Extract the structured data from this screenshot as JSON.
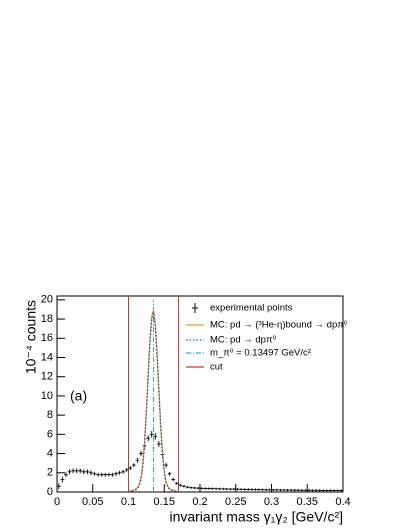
{
  "chart_data": {
    "type": "line",
    "xlabel": "invariant mass γ₁γ₂ [GeV/c²]",
    "ylabel": "10⁻⁴ counts",
    "annotation": "(a)",
    "xlim": [
      0,
      0.4
    ],
    "xticks": [
      0,
      0.05,
      0.1,
      0.15,
      0.2,
      0.25,
      0.3,
      0.35,
      0.4
    ],
    "ylim": [
      0,
      20.4
    ],
    "yticks": [
      0,
      2,
      4,
      6,
      8,
      10,
      12,
      14,
      16,
      18,
      20
    ],
    "grid": false,
    "legend": "upper right",
    "series": [
      {
        "name": "experimental points",
        "color": "#000000",
        "style": "points",
        "x": [
          0.0025,
          0.0075,
          0.0125,
          0.0175,
          0.0225,
          0.0275,
          0.0325,
          0.0375,
          0.0425,
          0.0475,
          0.0525,
          0.0575,
          0.0625,
          0.0675,
          0.0725,
          0.0775,
          0.0825,
          0.0875,
          0.0925,
          0.0975,
          0.1025,
          0.1075,
          0.1125,
          0.1175,
          0.1225,
          0.1275,
          0.1325,
          0.1375,
          0.1425,
          0.1475,
          0.1525,
          0.1575,
          0.1625,
          0.1675,
          0.1725,
          0.1775,
          0.1825,
          0.1875,
          0.1925,
          0.1975,
          0.2025,
          0.2075,
          0.2125,
          0.2175,
          0.2225,
          0.2275,
          0.2325,
          0.2375,
          0.2425,
          0.2475,
          0.2525,
          0.2575,
          0.2625,
          0.2675,
          0.2725,
          0.2775,
          0.2825,
          0.2875,
          0.2925,
          0.2975,
          0.3025,
          0.3075,
          0.3125,
          0.3175,
          0.3225,
          0.3275,
          0.3325,
          0.3375,
          0.3425,
          0.3475,
          0.3525,
          0.3575,
          0.3625,
          0.3675,
          0.3725,
          0.3775,
          0.3825,
          0.3875,
          0.3925,
          0.3975
        ],
        "values": [
          0.6,
          1.3,
          1.8,
          2.1,
          2.2,
          2.2,
          2.2,
          2.1,
          2.1,
          2.0,
          1.9,
          1.8,
          1.8,
          1.8,
          1.8,
          1.8,
          1.9,
          2.0,
          2.1,
          2.3,
          2.5,
          2.8,
          3.3,
          4.0,
          4.8,
          5.6,
          6.0,
          5.8,
          5.0,
          3.9,
          2.8,
          1.9,
          1.3,
          0.9,
          0.7,
          0.6,
          0.5,
          0.45,
          0.42,
          0.4,
          0.38,
          0.37,
          0.36,
          0.35,
          0.34,
          0.33,
          0.32,
          0.31,
          0.3,
          0.3,
          0.29,
          0.28,
          0.27,
          0.27,
          0.26,
          0.25,
          0.25,
          0.24,
          0.23,
          0.23,
          0.22,
          0.22,
          0.21,
          0.21,
          0.2,
          0.2,
          0.19,
          0.19,
          0.18,
          0.18,
          0.18,
          0.17,
          0.17,
          0.17,
          0.16,
          0.16,
          0.16,
          0.15,
          0.15,
          0.15
        ],
        "errors": [
          0.3,
          0.3,
          0.25,
          0.25,
          0.25,
          0.25,
          0.25,
          0.25,
          0.25,
          0.25,
          0.2,
          0.2,
          0.2,
          0.2,
          0.2,
          0.2,
          0.2,
          0.2,
          0.2,
          0.2,
          0.2,
          0.2,
          0.25,
          0.25,
          0.3,
          0.3,
          0.35,
          0.35,
          0.3,
          0.3,
          0.25,
          0.2,
          0.2,
          0.15,
          0.15,
          0.12,
          0.12,
          0.12,
          0.12,
          0.12,
          0.12,
          0.12,
          0.12,
          0.12,
          0.12,
          0.12,
          0.12,
          0.12,
          0.12,
          0.12,
          0.12,
          0.12,
          0.12,
          0.12,
          0.12,
          0.12,
          0.12,
          0.12,
          0.12,
          0.12,
          0.12,
          0.12,
          0.12,
          0.12,
          0.12,
          0.12,
          0.12,
          0.12,
          0.12,
          0.12,
          0.12,
          0.12,
          0.12,
          0.12,
          0.12,
          0.12,
          0.12,
          0.12,
          0.12,
          0.12
        ]
      },
      {
        "name": "MC: pd → (³He-η)bound → dpπ⁰",
        "color": "#e69a2e",
        "style": "solid",
        "x": [
          0.1,
          0.1025,
          0.105,
          0.1075,
          0.11,
          0.1125,
          0.115,
          0.1175,
          0.12,
          0.1225,
          0.125,
          0.1275,
          0.13,
          0.1325,
          0.135,
          0.1375,
          0.14,
          0.1425,
          0.145,
          0.1475,
          0.15,
          0.1525,
          0.155,
          0.1575,
          0.16,
          0.1625,
          0.165,
          0.1675,
          0.17
        ],
        "values": [
          0.05,
          0.1,
          0.15,
          0.2,
          0.3,
          0.45,
          0.8,
          1.5,
          2.93,
          5.28,
          8.5,
          12.3,
          15.9,
          18.3,
          18.98,
          17.5,
          14.5,
          10.7,
          7.1,
          4.2,
          2.2,
          1.1,
          0.6,
          0.35,
          0.25,
          0.2,
          0.15,
          0.1,
          0.08
        ]
      },
      {
        "name": "MC: pd → dpπ⁰",
        "color": "#1f5fb4",
        "style": "dotted",
        "x": [
          0.1,
          0.1025,
          0.105,
          0.1075,
          0.11,
          0.1125,
          0.115,
          0.1175,
          0.12,
          0.1225,
          0.125,
          0.1275,
          0.13,
          0.1325,
          0.135,
          0.1375,
          0.14,
          0.1425,
          0.145,
          0.1475,
          0.15,
          0.1525,
          0.155,
          0.1575,
          0.16,
          0.1625,
          0.165,
          0.1675,
          0.17
        ],
        "values": [
          0.03,
          0.06,
          0.1,
          0.15,
          0.22,
          0.35,
          0.65,
          1.3,
          2.7,
          5.0,
          8.2,
          12.0,
          15.6,
          18.0,
          18.7,
          17.2,
          14.2,
          10.4,
          6.8,
          3.9,
          2.0,
          0.95,
          0.5,
          0.28,
          0.18,
          0.12,
          0.08,
          0.06,
          0.04
        ]
      }
    ],
    "vlines": [
      {
        "name": "m_π⁰ = 0.13497 GeV/c²",
        "color": "#2ab0c8",
        "style": "dashdot",
        "x": [
          0.13497
        ],
        "top": 20
      },
      {
        "name": "cut",
        "color": "#d0342c",
        "style": "solid",
        "x": [
          0.1,
          0.17
        ],
        "top": 20.4
      }
    ]
  }
}
